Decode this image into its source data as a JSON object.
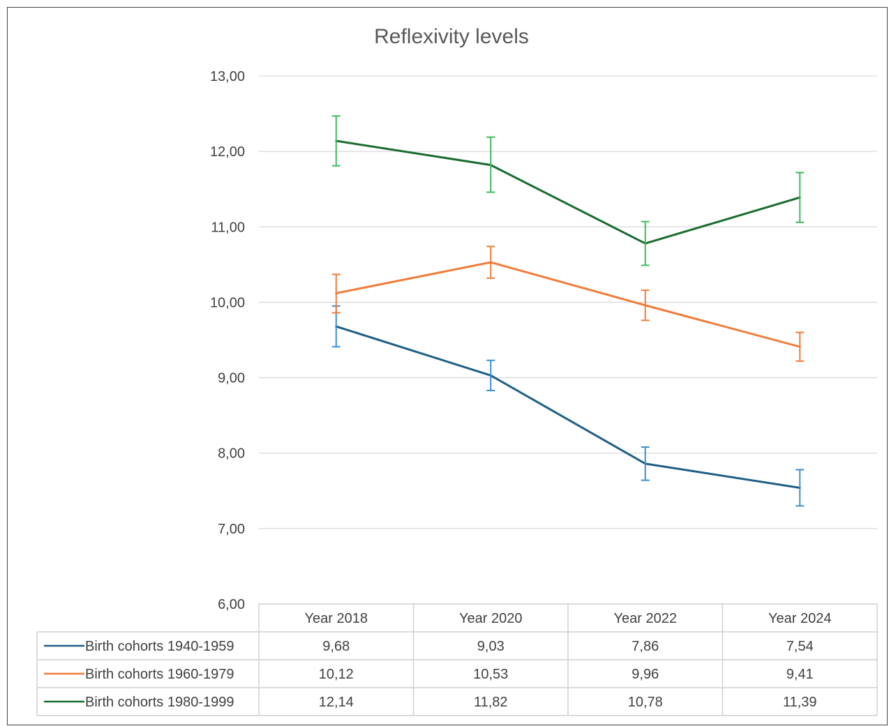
{
  "chart_data": {
    "type": "line",
    "title": "Reflexivity levels",
    "categories": [
      "Year 2018",
      "Year 2020",
      "Year 2022",
      "Year 2024"
    ],
    "ylim": [
      6,
      13
    ],
    "yticks": [
      "6,00",
      "7,00",
      "8,00",
      "9,00",
      "10,00",
      "11,00",
      "12,00",
      "13,00"
    ],
    "grid": true,
    "legend": "data-table-below",
    "series": [
      {
        "name": "Birth cohorts 1940-1959",
        "color": "#1f5e85",
        "error_bar_color": "#3b8fd4",
        "values": [
          9.68,
          9.03,
          7.86,
          7.54
        ],
        "value_labels": [
          "9,68",
          "9,03",
          "7,86",
          "7,54"
        ],
        "error_low": [
          9.41,
          8.83,
          7.64,
          7.3
        ],
        "error_high": [
          9.95,
          9.23,
          8.08,
          7.78
        ]
      },
      {
        "name": "Birth cohorts 1960-1979",
        "color": "#f07c3a",
        "error_bar_color": "#f07c3a",
        "values": [
          10.12,
          10.53,
          9.96,
          9.41
        ],
        "value_labels": [
          "10,12",
          "10,53",
          "9,96",
          "9,41"
        ],
        "error_low": [
          9.86,
          10.32,
          9.76,
          9.22
        ],
        "error_high": [
          10.37,
          10.74,
          10.16,
          9.6
        ]
      },
      {
        "name": "Birth cohorts 1980-1999",
        "color": "#1a6b2f",
        "error_bar_color": "#3dbb5e",
        "values": [
          12.14,
          11.82,
          10.78,
          11.39
        ],
        "value_labels": [
          "12,14",
          "11,82",
          "10,78",
          "11,39"
        ],
        "error_low": [
          11.81,
          11.46,
          10.49,
          11.06
        ],
        "error_high": [
          12.47,
          12.19,
          11.07,
          11.72
        ]
      }
    ]
  }
}
